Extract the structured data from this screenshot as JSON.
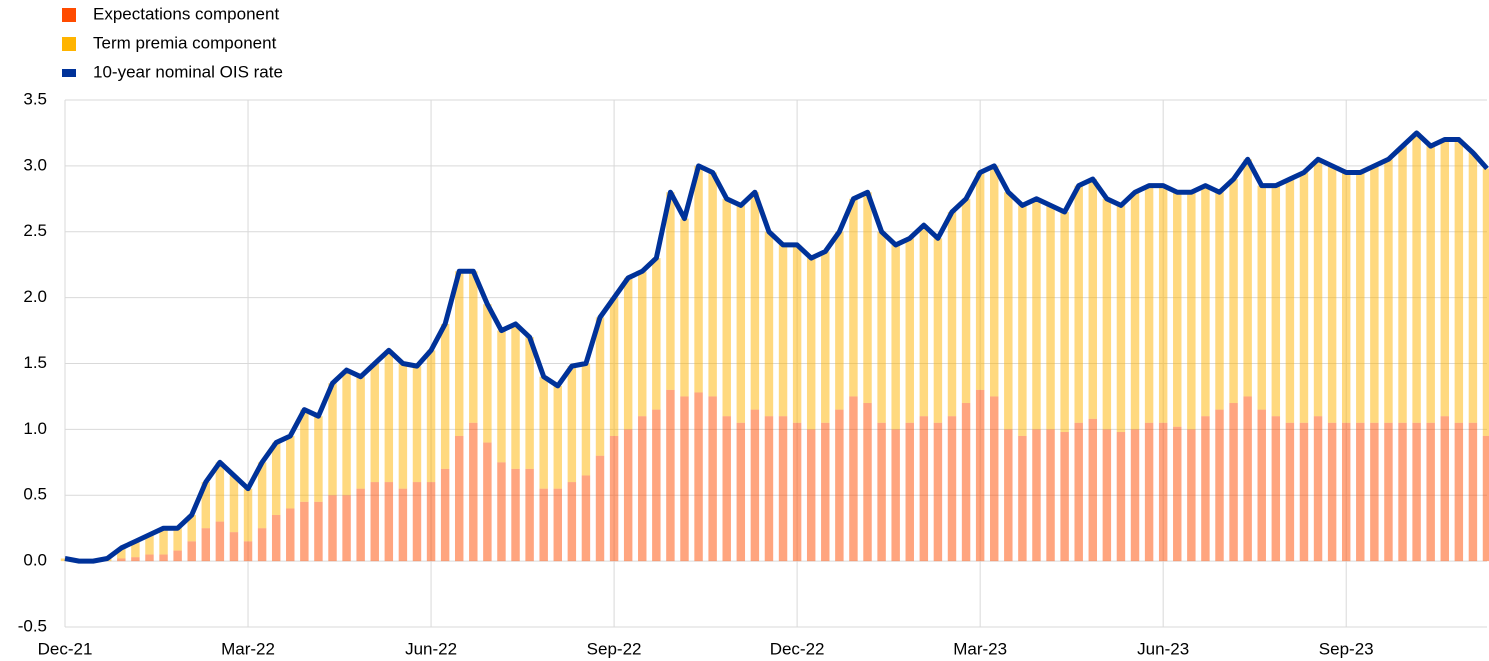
{
  "chart_data": {
    "type": "bar",
    "stacked": true,
    "categories": [
      "Dec-21",
      null,
      null,
      null,
      null,
      null,
      null,
      null,
      null,
      null,
      null,
      null,
      null,
      "Mar-22",
      null,
      null,
      null,
      null,
      null,
      null,
      null,
      null,
      null,
      null,
      null,
      null,
      "Jun-22",
      null,
      null,
      null,
      null,
      null,
      null,
      null,
      null,
      null,
      null,
      null,
      null,
      "Sep-22",
      null,
      null,
      null,
      null,
      null,
      null,
      null,
      null,
      null,
      null,
      null,
      null,
      "Dec-22",
      null,
      null,
      null,
      null,
      null,
      null,
      null,
      null,
      null,
      null,
      null,
      null,
      "Mar-23",
      null,
      null,
      null,
      null,
      null,
      null,
      null,
      null,
      null,
      null,
      null,
      null,
      "Jun-23",
      null,
      null,
      null,
      null,
      null,
      null,
      null,
      null,
      null,
      null,
      null,
      null,
      "Sep-23",
      null,
      null,
      null,
      null,
      null,
      null,
      null,
      null,
      null,
      null
    ],
    "series": [
      {
        "name": "Expectations component",
        "color": "#ff4b00",
        "values": [
          0,
          0,
          0,
          0,
          0.02,
          0.03,
          0.05,
          0.05,
          0.08,
          0.15,
          0.25,
          0.3,
          0.22,
          0.15,
          0.25,
          0.35,
          0.4,
          0.45,
          0.45,
          0.5,
          0.5,
          0.55,
          0.6,
          0.6,
          0.55,
          0.6,
          0.6,
          0.7,
          0.95,
          1.05,
          0.9,
          0.75,
          0.7,
          0.7,
          0.55,
          0.55,
          0.6,
          0.65,
          0.8,
          0.95,
          1.0,
          1.1,
          1.15,
          1.3,
          1.25,
          1.28,
          1.25,
          1.1,
          1.05,
          1.15,
          1.1,
          1.1,
          1.05,
          1.0,
          1.05,
          1.15,
          1.25,
          1.2,
          1.05,
          1.0,
          1.05,
          1.1,
          1.05,
          1.1,
          1.2,
          1.3,
          1.25,
          1.0,
          0.95,
          1.0,
          1.0,
          0.98,
          1.05,
          1.08,
          1.0,
          0.98,
          1.0,
          1.05,
          1.05,
          1.02,
          1.0,
          1.1,
          1.15,
          1.2,
          1.25,
          1.15,
          1.1,
          1.05,
          1.05,
          1.1,
          1.05,
          1.05,
          1.05,
          1.05,
          1.05,
          1.05,
          1.05,
          1.05,
          1.1,
          1.05,
          1.05,
          0.95
        ]
      },
      {
        "name": "Term premia component",
        "color": "#ffb400",
        "values": [
          0.02,
          0,
          0,
          0.02,
          0.08,
          0.12,
          0.15,
          0.2,
          0.17,
          0.2,
          0.35,
          0.45,
          0.43,
          0.4,
          0.5,
          0.55,
          0.55,
          0.7,
          0.65,
          0.85,
          0.95,
          0.85,
          0.9,
          1.0,
          0.95,
          0.88,
          1.0,
          1.1,
          1.25,
          1.15,
          1.05,
          1.0,
          1.1,
          1.0,
          0.85,
          0.78,
          0.88,
          0.85,
          1.05,
          1.05,
          1.15,
          1.1,
          1.15,
          1.5,
          1.35,
          1.72,
          1.7,
          1.65,
          1.65,
          1.65,
          1.4,
          1.3,
          1.35,
          1.3,
          1.3,
          1.35,
          1.5,
          1.6,
          1.45,
          1.4,
          1.4,
          1.45,
          1.4,
          1.55,
          1.55,
          1.65,
          1.75,
          1.8,
          1.75,
          1.75,
          1.7,
          1.67,
          1.8,
          1.82,
          1.75,
          1.72,
          1.8,
          1.8,
          1.8,
          1.78,
          1.8,
          1.75,
          1.65,
          1.7,
          1.8,
          1.7,
          1.75,
          1.85,
          1.9,
          1.95,
          1.95,
          1.9,
          1.9,
          1.95,
          2.0,
          2.1,
          2.2,
          2.1,
          2.1,
          2.15,
          2.05,
          2.03
        ]
      },
      {
        "name": "10-year nominal OIS rate",
        "type": "line",
        "color": "#003299",
        "values": [
          0.02,
          0,
          0,
          0.02,
          0.1,
          0.15,
          0.2,
          0.25,
          0.25,
          0.35,
          0.6,
          0.75,
          0.65,
          0.55,
          0.75,
          0.9,
          0.95,
          1.15,
          1.1,
          1.35,
          1.45,
          1.4,
          1.5,
          1.6,
          1.5,
          1.48,
          1.6,
          1.8,
          2.2,
          2.2,
          1.95,
          1.75,
          1.8,
          1.7,
          1.4,
          1.33,
          1.48,
          1.5,
          1.85,
          2.0,
          2.15,
          2.2,
          2.3,
          2.8,
          2.6,
          3.0,
          2.95,
          2.75,
          2.7,
          2.8,
          2.5,
          2.4,
          2.4,
          2.3,
          2.35,
          2.5,
          2.75,
          2.8,
          2.5,
          2.4,
          2.45,
          2.55,
          2.45,
          2.65,
          2.75,
          2.95,
          3.0,
          2.8,
          2.7,
          2.75,
          2.7,
          2.65,
          2.85,
          2.9,
          2.75,
          2.7,
          2.8,
          2.85,
          2.85,
          2.8,
          2.8,
          2.85,
          2.8,
          2.9,
          3.05,
          2.85,
          2.85,
          2.9,
          2.95,
          3.05,
          3.0,
          2.95,
          2.95,
          3.0,
          3.05,
          3.15,
          3.25,
          3.15,
          3.2,
          3.2,
          3.1,
          2.98
        ]
      }
    ],
    "ylim": [
      -0.5,
      3.5
    ],
    "yticks": [
      {
        "value": -0.5,
        "label": "-0.5"
      },
      {
        "value": 0,
        "label": "0.0"
      },
      {
        "value": 0.5,
        "label": "0.5"
      },
      {
        "value": 1,
        "label": "1.0"
      },
      {
        "value": 1.5,
        "label": "1.5"
      },
      {
        "value": 2,
        "label": "2.0"
      },
      {
        "value": 2.5,
        "label": "2.5"
      },
      {
        "value": 3,
        "label": "3.0"
      },
      {
        "value": 3.5,
        "label": "3.5"
      }
    ],
    "grid": true,
    "legend": "top-left"
  }
}
